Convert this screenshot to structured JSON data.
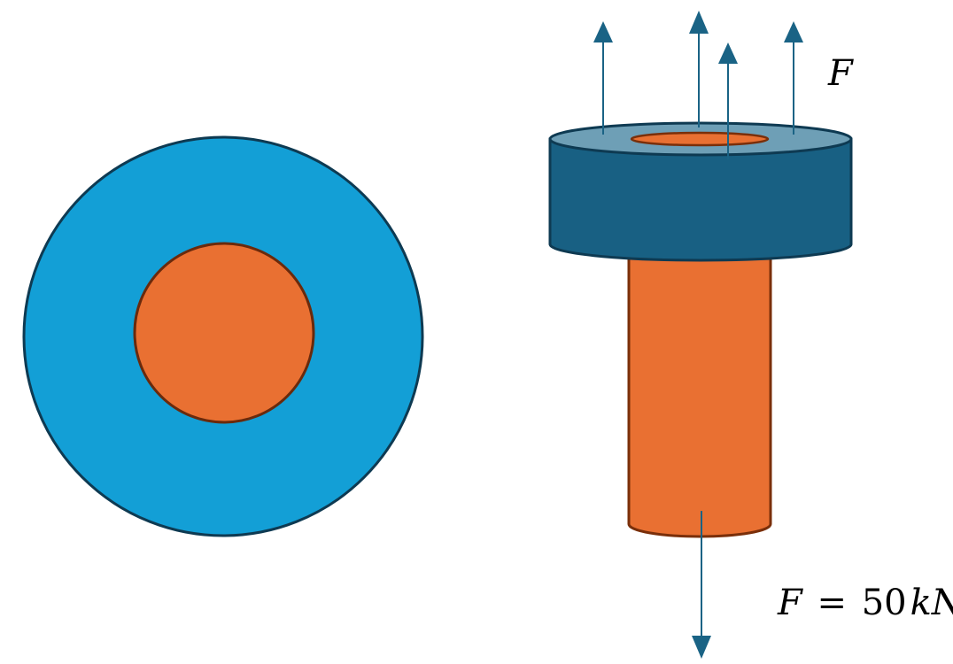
{
  "labels": {
    "top_force": "F",
    "bottom_force_lhs": "F",
    "bottom_force_eq": " = ",
    "bottom_force_num": "50",
    "bottom_force_unit": "kN"
  },
  "colors": {
    "washer_face": "#139fd6",
    "washer_top": "#6e9fb6",
    "washer_side": "#186083",
    "shaft": "#e97032",
    "shaft_outline": "#7a2f0a",
    "dark_outline": "#0e3a52",
    "arrow": "#1a6385"
  }
}
